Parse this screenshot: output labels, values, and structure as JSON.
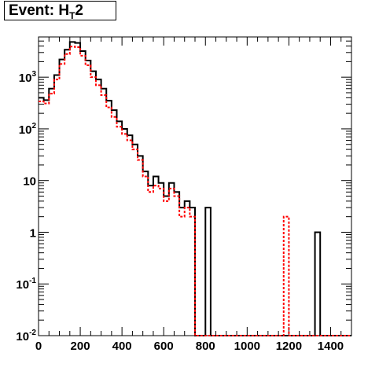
{
  "title": {
    "main": "Event: H",
    "sub": "T",
    "suffix": "2"
  },
  "chart_data": {
    "type": "histogram",
    "title": "Event: H_T2",
    "xlabel": "",
    "ylabel": "",
    "xlim": [
      0,
      1500
    ],
    "ylim": [
      0.01,
      6000
    ],
    "log_y": true,
    "grid": false,
    "bin_width": 25,
    "x_ticks": [
      0,
      200,
      400,
      600,
      800,
      1000,
      1200,
      1400
    ],
    "y_ticks": [
      {
        "value": 0.01,
        "label": "10",
        "exp": "-2"
      },
      {
        "value": 0.1,
        "label": "10",
        "exp": "-1"
      },
      {
        "value": 1,
        "label": "1",
        "exp": ""
      },
      {
        "value": 10,
        "label": "10",
        "exp": ""
      },
      {
        "value": 100,
        "label": "10",
        "exp": "2"
      },
      {
        "value": 1000,
        "label": "10",
        "exp": "3"
      }
    ],
    "series": [
      {
        "color": "#000000",
        "style": "solid",
        "values": [
          400,
          360,
          600,
          1100,
          2200,
          3400,
          4800,
          4600,
          3200,
          2100,
          1300,
          900,
          600,
          350,
          230,
          140,
          100,
          75,
          50,
          30,
          15,
          8,
          12,
          9,
          5,
          9,
          6,
          3,
          4,
          3,
          0,
          0,
          3,
          0,
          0,
          0,
          0,
          0,
          0,
          0,
          0,
          0,
          0,
          0,
          0,
          0,
          0,
          0,
          0,
          0,
          0,
          0,
          0,
          1,
          0,
          0,
          0,
          0,
          0,
          0
        ]
      },
      {
        "color": "#ff0000",
        "style": "dashed",
        "values": [
          340,
          310,
          480,
          900,
          1800,
          2800,
          3900,
          3800,
          2600,
          1700,
          1000,
          700,
          450,
          260,
          170,
          110,
          80,
          60,
          40,
          25,
          12,
          6,
          8,
          7,
          4,
          7,
          5,
          2,
          3,
          2,
          0,
          0,
          0,
          0,
          0,
          0,
          0,
          0,
          0,
          0,
          0,
          0,
          0,
          0,
          0,
          0,
          0,
          2,
          0,
          0,
          0,
          0,
          0,
          0,
          0,
          0,
          0,
          0,
          0,
          0
        ]
      }
    ]
  }
}
